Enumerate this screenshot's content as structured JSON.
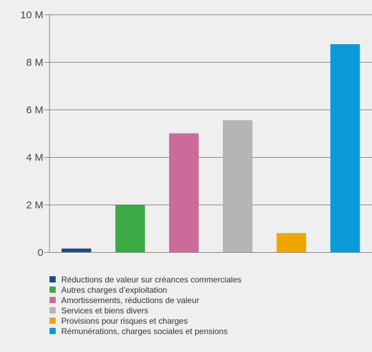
{
  "chart_data": {
    "type": "bar",
    "categories": [
      "Réductions de valeur sur créances commerciales",
      "Autres charges d’exploitation",
      "Amortissements, réductions de valeur",
      "Services et biens divers",
      "Provisions pour risques et charges",
      "Rémunérations, charges sociales et pensions"
    ],
    "values": [
      150000,
      2000000,
      5000000,
      5550000,
      800000,
      8750000
    ],
    "colors": [
      "#1a4a8a",
      "#3aaa45",
      "#cc6a9a",
      "#b5b5b5",
      "#f0a500",
      "#0a9ad8"
    ],
    "ylim": [
      0,
      10000000
    ],
    "yticks": [
      0,
      2000000,
      4000000,
      6000000,
      8000000,
      10000000
    ],
    "ytick_labels": [
      "0",
      "2 M",
      "4 M",
      "6 M",
      "8 M",
      "10 M"
    ],
    "grid": true,
    "legend": "bottom",
    "xlabel": "",
    "ylabel": "",
    "title": ""
  }
}
